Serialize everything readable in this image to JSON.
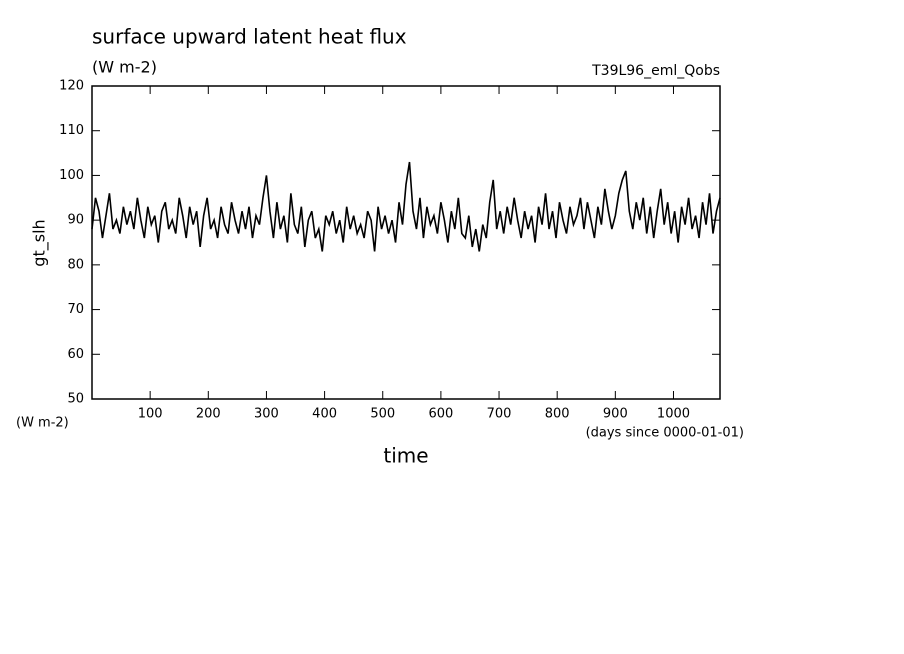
{
  "chart_data": {
    "type": "line",
    "title": "surface upward latent heat flux",
    "subtitle": "(W m-2)",
    "annotation": "T39L96_eml_Qobs",
    "ylabel": "gt_slh",
    "yunit": "(W m-2)",
    "xlabel": "time",
    "xunit": "(days since 0000-01-01)",
    "color": "#000000",
    "x": [
      0,
      6,
      12,
      18,
      24,
      30,
      36,
      42,
      48,
      54,
      60,
      66,
      72,
      78,
      84,
      90,
      96,
      102,
      108,
      114,
      120,
      126,
      132,
      138,
      144,
      150,
      156,
      162,
      168,
      174,
      180,
      186,
      192,
      198,
      204,
      210,
      216,
      222,
      228,
      234,
      240,
      246,
      252,
      258,
      264,
      270,
      276,
      282,
      288,
      294,
      300,
      306,
      312,
      318,
      324,
      330,
      336,
      342,
      348,
      354,
      360,
      366,
      372,
      378,
      384,
      390,
      396,
      402,
      408,
      414,
      420,
      426,
      432,
      438,
      444,
      450,
      456,
      462,
      468,
      474,
      480,
      486,
      492,
      498,
      504,
      510,
      516,
      522,
      528,
      534,
      540,
      546,
      552,
      558,
      564,
      570,
      576,
      582,
      588,
      594,
      600,
      606,
      612,
      618,
      624,
      630,
      636,
      642,
      648,
      654,
      660,
      666,
      672,
      678,
      684,
      690,
      696,
      702,
      708,
      714,
      720,
      726,
      732,
      738,
      744,
      750,
      756,
      762,
      768,
      774,
      780,
      786,
      792,
      798,
      804,
      810,
      816,
      822,
      828,
      834,
      840,
      846,
      852,
      858,
      864,
      870,
      876,
      882,
      888,
      894,
      900,
      906,
      912,
      918,
      924,
      930,
      936,
      942,
      948,
      954,
      960,
      966,
      972,
      978,
      984,
      990,
      996,
      1002,
      1008,
      1014,
      1020,
      1026,
      1032,
      1038,
      1044,
      1050,
      1056,
      1062,
      1068,
      1074,
      1080
    ],
    "values": [
      88,
      95,
      92,
      86,
      91,
      96,
      88,
      90,
      87,
      93,
      89,
      92,
      88,
      95,
      90,
      86,
      93,
      89,
      91,
      85,
      92,
      94,
      88,
      90,
      87,
      95,
      91,
      86,
      93,
      89,
      92,
      84,
      91,
      95,
      88,
      90,
      86,
      93,
      89,
      87,
      94,
      90,
      87,
      92,
      88,
      93,
      86,
      91,
      89,
      95,
      100,
      92,
      86,
      94,
      88,
      91,
      85,
      96,
      89,
      87,
      93,
      84,
      90,
      92,
      86,
      88,
      83,
      91,
      89,
      92,
      87,
      90,
      85,
      93,
      88,
      91,
      87,
      89,
      86,
      92,
      90,
      83,
      93,
      88,
      91,
      87,
      90,
      85,
      94,
      89,
      98,
      103,
      92,
      88,
      95,
      86,
      93,
      89,
      91,
      87,
      94,
      90,
      85,
      92,
      88,
      95,
      87,
      86,
      91,
      84,
      88,
      83,
      89,
      86,
      94,
      99,
      88,
      92,
      87,
      93,
      89,
      95,
      90,
      86,
      92,
      88,
      91,
      85,
      93,
      89,
      96,
      88,
      92,
      86,
      94,
      90,
      87,
      93,
      89,
      91,
      95,
      88,
      94,
      90,
      86,
      93,
      89,
      97,
      92,
      88,
      91,
      96,
      99,
      101,
      92,
      88,
      94,
      90,
      95,
      87,
      93,
      86,
      92,
      97,
      89,
      94,
      87,
      92,
      85,
      93,
      89,
      95,
      88,
      91,
      86,
      94,
      89,
      96,
      87,
      92,
      95
    ],
    "xlim": [
      0,
      1080
    ],
    "xticks": [
      100,
      200,
      300,
      400,
      500,
      600,
      700,
      800,
      900,
      1000
    ],
    "ylim": [
      50,
      120
    ],
    "yticks": [
      50,
      60,
      70,
      80,
      90,
      100,
      110,
      120
    ]
  }
}
